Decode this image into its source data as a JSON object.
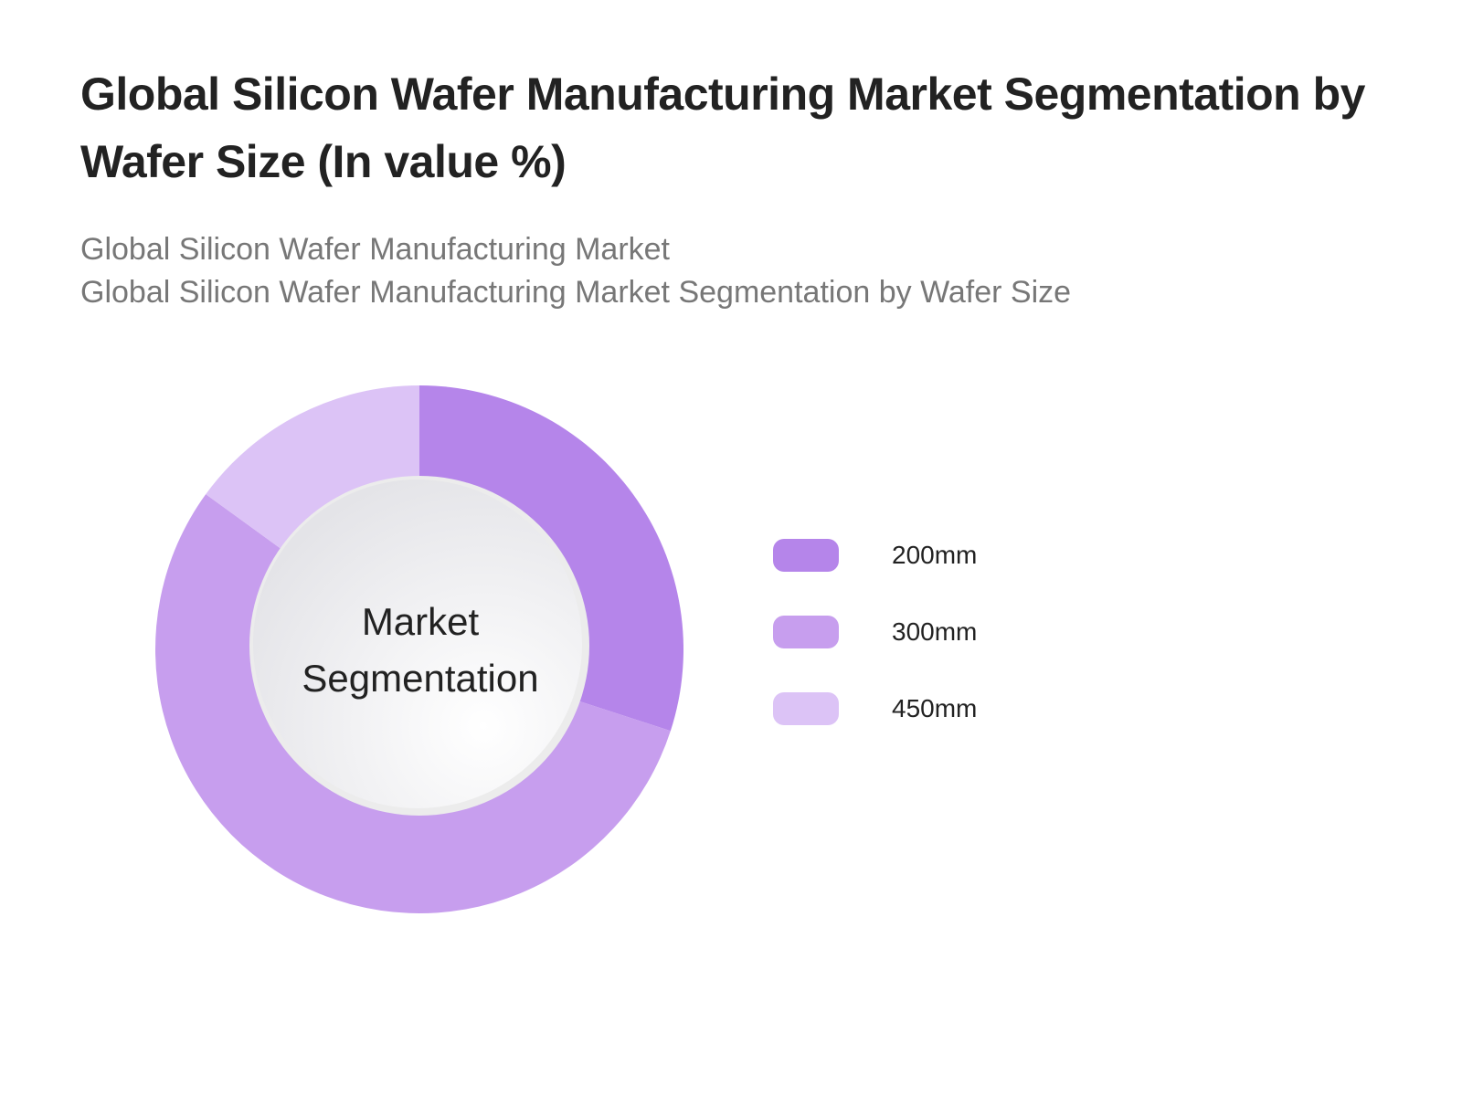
{
  "title": "Global Silicon Wafer Manufacturing Market Segmentation by Wafer Size (In value %)",
  "subtitle_line1": "Global Silicon Wafer Manufacturing Market",
  "subtitle_line2": "Global Silicon Wafer Manufacturing Market Segmentation by Wafer Size",
  "chart_data": {
    "type": "pie",
    "variant": "donut",
    "title": "Global Silicon Wafer Manufacturing Market Segmentation by Wafer Size (In value %)",
    "center_label": "Market Segmentation",
    "center_label_lines": [
      "Market",
      "Segmentation"
    ],
    "legend_position": "right",
    "categories": [
      "200mm",
      "300mm",
      "450mm"
    ],
    "values": [
      30,
      55,
      15
    ],
    "colors": [
      "#b585ea",
      "#c79eee",
      "#dcc3f6"
    ]
  }
}
